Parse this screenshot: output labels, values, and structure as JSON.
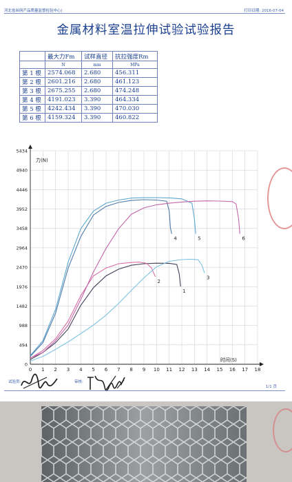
{
  "header": {
    "org": "河北省丝网产品质量监督检验中心)",
    "print_date_label": "打印日期:",
    "print_date": "2016-07-04"
  },
  "title": "金属材料室温拉伸试验试验报告",
  "table": {
    "headers": [
      "最大力Fm",
      "试样直径",
      "抗拉强度Rm"
    ],
    "units": [
      "N",
      "mm",
      "MPa"
    ],
    "rows": [
      {
        "label": "第 1 根",
        "fm": "2574.068",
        "dia": "2.680",
        "rm": "456.311"
      },
      {
        "label": "第 2 根",
        "fm": "2601.216",
        "dia": "2.680",
        "rm": "461.123"
      },
      {
        "label": "第 3 根",
        "fm": "2675.255",
        "dia": "2.680",
        "rm": "474.248"
      },
      {
        "label": "第 4 根",
        "fm": "4191.023",
        "dia": "3.390",
        "rm": "464.334"
      },
      {
        "label": "第 5 根",
        "fm": "4242.434",
        "dia": "3.390",
        "rm": "470.030"
      },
      {
        "label": "第 6 根",
        "fm": "4159.324",
        "dia": "3.390",
        "rm": "460.822"
      }
    ]
  },
  "chart_data": {
    "type": "line",
    "ylabel": "力(N)",
    "xlabel": "时间(S)",
    "xlim": [
      0,
      18
    ],
    "ylim": [
      0,
      5434
    ],
    "x_ticks": [
      0,
      1,
      2,
      3,
      4,
      5,
      6,
      7,
      8,
      9,
      10,
      11,
      12,
      13,
      14,
      15,
      16,
      17,
      18
    ],
    "y_ticks": [
      0,
      494,
      988,
      1482,
      1976,
      2470,
      2964,
      3458,
      3952,
      4446,
      4940,
      5434
    ],
    "grid": true,
    "series": [
      {
        "name": "1",
        "color": "#3e3f56",
        "points": [
          [
            0,
            120
          ],
          [
            1,
            300
          ],
          [
            2,
            550
          ],
          [
            3,
            900
          ],
          [
            4,
            1500
          ],
          [
            5,
            1950
          ],
          [
            6,
            2250
          ],
          [
            7,
            2420
          ],
          [
            8,
            2520
          ],
          [
            9,
            2560
          ],
          [
            10,
            2574
          ],
          [
            11,
            2570
          ],
          [
            11.6,
            2540
          ],
          [
            11.8,
            2300
          ],
          [
            11.9,
            1980
          ]
        ]
      },
      {
        "name": "2",
        "color": "#d76fa4",
        "points": [
          [
            0,
            150
          ],
          [
            1,
            350
          ],
          [
            2,
            650
          ],
          [
            3,
            1100
          ],
          [
            4,
            1750
          ],
          [
            5,
            2250
          ],
          [
            6,
            2450
          ],
          [
            7,
            2560
          ],
          [
            8,
            2590
          ],
          [
            8.6,
            2601
          ],
          [
            9.2,
            2570
          ],
          [
            9.6,
            2450
          ],
          [
            9.9,
            2230
          ]
        ]
      },
      {
        "name": "3",
        "color": "#7ec2e2",
        "points": [
          [
            0,
            80
          ],
          [
            1,
            200
          ],
          [
            2,
            380
          ],
          [
            3,
            570
          ],
          [
            4,
            780
          ],
          [
            5,
            1000
          ],
          [
            6,
            1250
          ],
          [
            7,
            1550
          ],
          [
            8,
            1880
          ],
          [
            9,
            2200
          ],
          [
            10,
            2480
          ],
          [
            11,
            2620
          ],
          [
            12,
            2665
          ],
          [
            12.8,
            2675
          ],
          [
            13.3,
            2660
          ],
          [
            13.6,
            2520
          ],
          [
            13.8,
            2320
          ]
        ]
      },
      {
        "name": "4",
        "color": "#4e78a8",
        "points": [
          [
            0,
            200
          ],
          [
            1,
            550
          ],
          [
            2,
            1300
          ],
          [
            3,
            2450
          ],
          [
            4,
            3250
          ],
          [
            5,
            3800
          ],
          [
            6,
            4020
          ],
          [
            7,
            4120
          ],
          [
            8,
            4170
          ],
          [
            9,
            4190
          ],
          [
            10,
            4180
          ],
          [
            10.8,
            4150
          ],
          [
            11,
            3900
          ],
          [
            11.1,
            3470
          ],
          [
            11.2,
            3320
          ]
        ]
      },
      {
        "name": "5",
        "color": "#5ba7cf",
        "points": [
          [
            0,
            220
          ],
          [
            1,
            600
          ],
          [
            2,
            1400
          ],
          [
            3,
            2600
          ],
          [
            4,
            3450
          ],
          [
            5,
            3900
          ],
          [
            6,
            4100
          ],
          [
            7,
            4180
          ],
          [
            8,
            4230
          ],
          [
            9,
            4240
          ],
          [
            10,
            4242
          ],
          [
            11,
            4235
          ],
          [
            12,
            4210
          ],
          [
            12.8,
            4100
          ],
          [
            13,
            3700
          ],
          [
            13.1,
            3320
          ]
        ]
      },
      {
        "name": "6",
        "color": "#c265a7",
        "points": [
          [
            0,
            160
          ],
          [
            1,
            300
          ],
          [
            2,
            600
          ],
          [
            3,
            1000
          ],
          [
            4,
            1650
          ],
          [
            5,
            2350
          ],
          [
            6,
            2950
          ],
          [
            7,
            3450
          ],
          [
            8,
            3820
          ],
          [
            9,
            3980
          ],
          [
            10,
            4060
          ],
          [
            11,
            4100
          ],
          [
            12,
            4130
          ],
          [
            13,
            4150
          ],
          [
            14,
            4159
          ],
          [
            15,
            4155
          ],
          [
            16,
            4140
          ],
          [
            16.3,
            4080
          ],
          [
            16.5,
            3700
          ],
          [
            16.6,
            3320
          ]
        ]
      }
    ]
  },
  "footer": {
    "signer_label": "试验员:",
    "reviewer_label": "审核:",
    "page": "1/1 页"
  }
}
